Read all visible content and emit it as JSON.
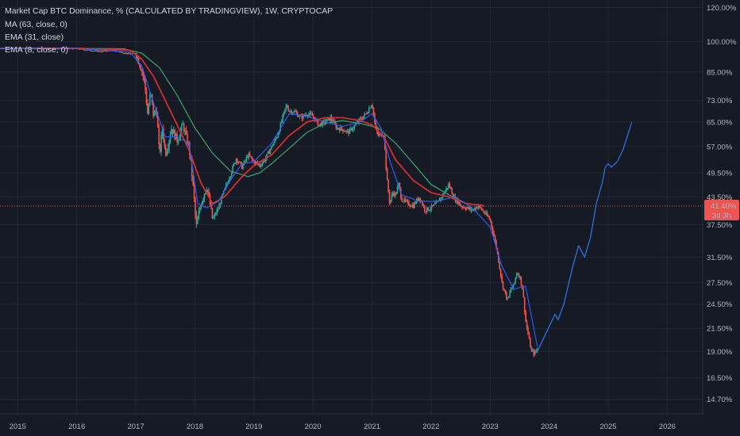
{
  "legend": {
    "title": "Market Cap BTC Dominance, % (CALCULATED BY TRADINGVIEW), 1W, CRYPTOCAP",
    "indicators": [
      "MA (63, close, 0)",
      "EMA (31, close)",
      "EMA (8, close, 0)"
    ]
  },
  "price_badge": {
    "value": "41.40%",
    "countdown": "3d 3h"
  },
  "colors": {
    "background": "#161a25",
    "grid": "#232734",
    "up_candle": "#26a69a",
    "down_candle": "#ef5350",
    "ma63": "#3aa66b",
    "ema31": "#d32f2f",
    "ema8": "#2962ff",
    "projection": "#2d6fe0",
    "price_line": "#ef5350"
  },
  "chart_data": {
    "type": "line",
    "title": "Market Cap BTC Dominance, % (CALCULATED BY TRADINGVIEW), 1W, CRYPTOCAP",
    "xlabel": "",
    "ylabel": "",
    "scale": "log",
    "grid": true,
    "legend_position": "top-left",
    "ylim": [
      13.6,
      125
    ],
    "y_ticks": [
      {
        "value": 120,
        "label": "120.00%"
      },
      {
        "value": 100,
        "label": "100.00%"
      },
      {
        "value": 85,
        "label": "85.00%"
      },
      {
        "value": 73,
        "label": "73.00%"
      },
      {
        "value": 65,
        "label": "65.00%"
      },
      {
        "value": 57,
        "label": "57.00%"
      },
      {
        "value": 49.5,
        "label": "49.50%"
      },
      {
        "value": 43.5,
        "label": "43.50%"
      },
      {
        "value": 37.5,
        "label": "37.50%"
      },
      {
        "value": 31.5,
        "label": "31.50%"
      },
      {
        "value": 27.5,
        "label": "27.50%"
      },
      {
        "value": 24.5,
        "label": "24.50%"
      },
      {
        "value": 21.5,
        "label": "21.50%"
      },
      {
        "value": 19,
        "label": "19.00%"
      },
      {
        "value": 16.5,
        "label": "16.50%"
      },
      {
        "value": 14.7,
        "label": "14.70%"
      }
    ],
    "xlim": [
      2014.7,
      2026.6
    ],
    "x_ticks": [
      {
        "value": 2015,
        "label": "2015"
      },
      {
        "value": 2016,
        "label": "2016"
      },
      {
        "value": 2017,
        "label": "2017"
      },
      {
        "value": 2018,
        "label": "2018"
      },
      {
        "value": 2019,
        "label": "2019"
      },
      {
        "value": 2020,
        "label": "2020"
      },
      {
        "value": 2021,
        "label": "2021"
      },
      {
        "value": 2022,
        "label": "2022"
      },
      {
        "value": 2023,
        "label": "2023"
      },
      {
        "value": 2024,
        "label": "2024"
      },
      {
        "value": 2025,
        "label": "2025"
      },
      {
        "value": 2026,
        "label": "2026"
      }
    ],
    "current_value": 41.4,
    "series": [
      {
        "name": "Market Cap BTC Dominance",
        "style": "candles",
        "x": [
          2014.7,
          2015.0,
          2015.5,
          2016.0,
          2016.4,
          2016.6,
          2016.9,
          2017.0,
          2017.1,
          2017.15,
          2017.2,
          2017.25,
          2017.3,
          2017.35,
          2017.4,
          2017.45,
          2017.5,
          2017.55,
          2017.6,
          2017.7,
          2017.8,
          2017.85,
          2017.9,
          2018.0,
          2018.02,
          2018.05,
          2018.1,
          2018.2,
          2018.3,
          2018.4,
          2018.5,
          2018.6,
          2018.7,
          2018.8,
          2018.9,
          2019.0,
          2019.1,
          2019.2,
          2019.3,
          2019.4,
          2019.5,
          2019.55,
          2019.6,
          2019.7,
          2019.8,
          2019.9,
          2020.0,
          2020.1,
          2020.2,
          2020.3,
          2020.4,
          2020.5,
          2020.6,
          2020.7,
          2020.8,
          2020.9,
          2021.0,
          2021.05,
          2021.1,
          2021.2,
          2021.25,
          2021.3,
          2021.35,
          2021.4,
          2021.45,
          2021.5,
          2021.6,
          2021.7,
          2021.8,
          2021.9,
          2022.0,
          2022.1,
          2022.2,
          2022.3,
          2022.4,
          2022.45,
          2022.5,
          2022.6,
          2022.7,
          2022.8,
          2022.9,
          2023.0,
          2023.05,
          2023.1,
          2023.15,
          2023.2,
          2023.25,
          2023.3,
          2023.35,
          2023.4,
          2023.45,
          2023.5,
          2023.55,
          2023.6,
          2023.65,
          2023.7,
          2023.75,
          2023.8
        ],
        "values": [
          96.5,
          96.6,
          96.4,
          96.3,
          94.8,
          95.5,
          93.5,
          94.0,
          86.0,
          80.0,
          68.0,
          76.0,
          67.0,
          70.0,
          54.0,
          63.0,
          55.0,
          58.0,
          63.0,
          59.0,
          64.0,
          60.0,
          57.0,
          41.0,
          36.8,
          38.5,
          42.0,
          46.0,
          38.5,
          41.0,
          45.0,
          49.0,
          53.5,
          51.0,
          54.5,
          52.5,
          51.5,
          53.5,
          57.0,
          60.5,
          67.5,
          71.0,
          69.0,
          68.5,
          66.5,
          68.0,
          67.0,
          64.0,
          65.0,
          66.5,
          63.0,
          62.5,
          61.5,
          63.5,
          66.0,
          68.0,
          72.0,
          64.0,
          60.5,
          61.0,
          48.0,
          42.0,
          44.5,
          44.0,
          46.5,
          43.0,
          42.0,
          41.5,
          43.5,
          40.5,
          41.0,
          42.0,
          44.0,
          46.5,
          43.0,
          42.5,
          41.5,
          41.0,
          40.5,
          41.5,
          40.0,
          38.5,
          36.0,
          33.5,
          30.5,
          27.5,
          26.0,
          25.0,
          26.5,
          27.0,
          29.0,
          28.5,
          26.5,
          22.5,
          20.5,
          19.0,
          18.8,
          19.2
        ]
      },
      {
        "name": "MA (63, close, 0)",
        "style": "line",
        "x": [
          2014.7,
          2016.0,
          2016.8,
          2017.1,
          2017.4,
          2017.7,
          2018.0,
          2018.3,
          2018.6,
          2018.9,
          2019.1,
          2019.3,
          2019.6,
          2019.9,
          2020.2,
          2020.5,
          2020.8,
          2021.1,
          2021.4,
          2021.7,
          2022.0,
          2022.3,
          2022.6,
          2022.9
        ],
        "values": [
          96.5,
          96.5,
          96.2,
          94.0,
          87.0,
          75.0,
          63.0,
          55.0,
          50.0,
          48.5,
          49.5,
          52.0,
          56.5,
          61.5,
          64.5,
          65.5,
          64.5,
          63.0,
          58.0,
          52.0,
          46.5,
          44.0,
          42.0,
          41.5
        ]
      },
      {
        "name": "EMA (31, close)",
        "style": "line",
        "x": [
          2014.7,
          2016.0,
          2016.9,
          2017.1,
          2017.3,
          2017.5,
          2017.7,
          2017.9,
          2018.1,
          2018.3,
          2018.5,
          2018.8,
          2019.0,
          2019.3,
          2019.6,
          2019.9,
          2020.2,
          2020.5,
          2020.8,
          2021.0,
          2021.2,
          2021.4,
          2021.7,
          2022.0,
          2022.3,
          2022.6,
          2022.9
        ],
        "values": [
          96.5,
          96.5,
          95.5,
          91.0,
          83.0,
          73.0,
          64.0,
          56.0,
          47.0,
          42.0,
          43.5,
          48.5,
          51.5,
          54.5,
          60.5,
          65.0,
          66.5,
          66.5,
          65.5,
          64.0,
          60.0,
          53.0,
          47.5,
          44.5,
          43.5,
          42.0,
          41.5
        ]
      },
      {
        "name": "EMA (8, close, 0)",
        "style": "line",
        "x": [
          2014.7,
          2016.0,
          2016.9,
          2017.1,
          2017.3,
          2017.5,
          2017.7,
          2017.9,
          2018.05,
          2018.2,
          2018.4,
          2018.6,
          2018.8,
          2019.0,
          2019.3,
          2019.6,
          2019.9,
          2020.2,
          2020.5,
          2020.8,
          2021.0,
          2021.15,
          2021.3,
          2021.5,
          2021.8,
          2022.1,
          2022.4,
          2022.7,
          2023.0,
          2023.2,
          2023.4,
          2023.6,
          2023.8
        ],
        "values": [
          96.5,
          96.4,
          94.5,
          88.0,
          72.0,
          60.0,
          60.0,
          58.0,
          42.0,
          41.0,
          42.5,
          47.5,
          52.0,
          52.5,
          58.0,
          68.0,
          67.0,
          65.0,
          63.5,
          65.0,
          68.0,
          63.0,
          53.0,
          44.0,
          42.5,
          42.5,
          43.5,
          41.0,
          37.0,
          30.0,
          26.5,
          27.0,
          19.5
        ]
      },
      {
        "name": "Projection",
        "style": "line",
        "x": [
          2023.8,
          2023.95,
          2024.1,
          2024.15,
          2024.25,
          2024.4,
          2024.5,
          2024.6,
          2024.7,
          2024.8,
          2024.9,
          2024.95,
          2025.0,
          2025.05,
          2025.15,
          2025.25,
          2025.4
        ],
        "values": [
          19.0,
          21.0,
          23.2,
          22.5,
          24.5,
          30.0,
          33.5,
          31.5,
          35.0,
          42.0,
          47.0,
          51.0,
          52.0,
          51.0,
          52.5,
          56.0,
          65.0
        ]
      }
    ]
  }
}
